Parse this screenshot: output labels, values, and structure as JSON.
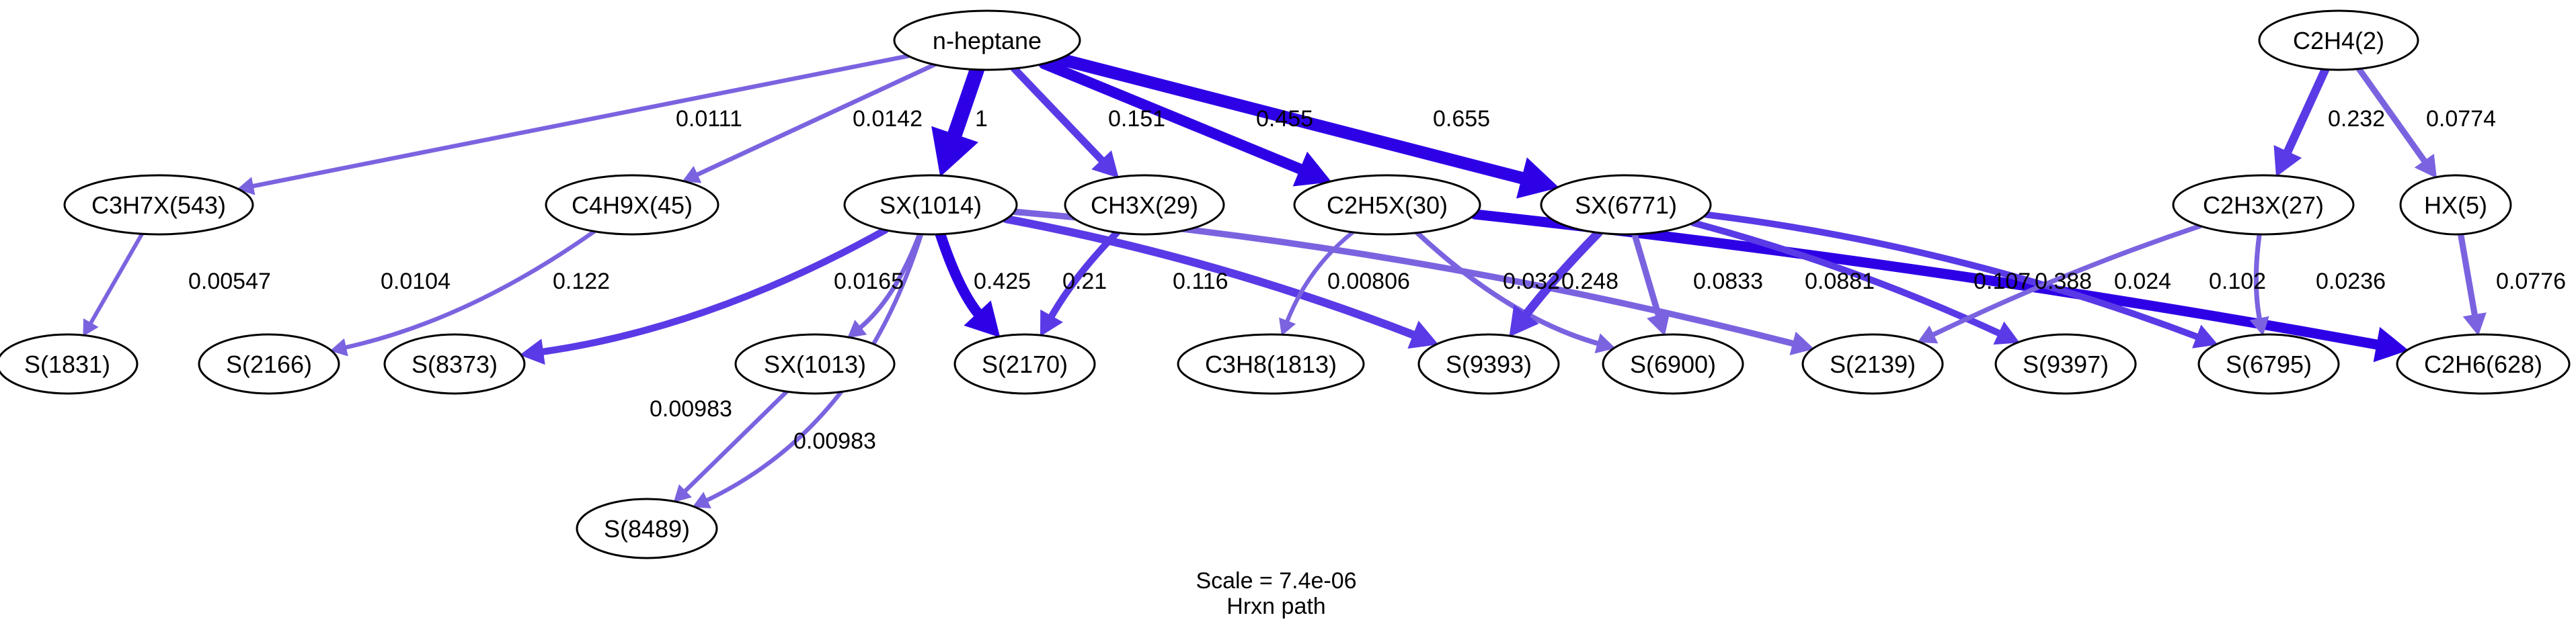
{
  "graph": {
    "colors": {
      "strong": "#2e00e6",
      "medium": "#5a3ae6",
      "light": "#7b63e0",
      "node_stroke": "#000000",
      "text": "#000000"
    },
    "nodes": [
      {
        "id": "n-heptane",
        "label": "n-heptane"
      },
      {
        "id": "C2H4(2)",
        "label": "C2H4(2)"
      },
      {
        "id": "C3H7X(543)",
        "label": "C3H7X(543)"
      },
      {
        "id": "C4H9X(45)",
        "label": "C4H9X(45)"
      },
      {
        "id": "SX(1014)",
        "label": "SX(1014)"
      },
      {
        "id": "CH3X(29)",
        "label": "CH3X(29)"
      },
      {
        "id": "C2H5X(30)",
        "label": "C2H5X(30)"
      },
      {
        "id": "SX(6771)",
        "label": "SX(6771)"
      },
      {
        "id": "C2H3X(27)",
        "label": "C2H3X(27)"
      },
      {
        "id": "HX(5)",
        "label": "HX(5)"
      },
      {
        "id": "S(1831)",
        "label": "S(1831)"
      },
      {
        "id": "S(2166)",
        "label": "S(2166)"
      },
      {
        "id": "S(8373)",
        "label": "S(8373)"
      },
      {
        "id": "SX(1013)",
        "label": "SX(1013)"
      },
      {
        "id": "S(2170)",
        "label": "S(2170)"
      },
      {
        "id": "C3H8(1813)",
        "label": "C3H8(1813)"
      },
      {
        "id": "S(9393)",
        "label": "S(9393)"
      },
      {
        "id": "S(6900)",
        "label": "S(6900)"
      },
      {
        "id": "S(2139)",
        "label": "S(2139)"
      },
      {
        "id": "S(9397)",
        "label": "S(9397)"
      },
      {
        "id": "S(6795)",
        "label": "S(6795)"
      },
      {
        "id": "C2H6(628)",
        "label": "C2H6(628)"
      },
      {
        "id": "S(8489)",
        "label": "S(8489)"
      }
    ],
    "edges": [
      {
        "from": "n-heptane",
        "to": "C3H7X(543)",
        "label": "0.0111",
        "weight": 0.0111
      },
      {
        "from": "n-heptane",
        "to": "C4H9X(45)",
        "label": "0.0142",
        "weight": 0.0142
      },
      {
        "from": "n-heptane",
        "to": "SX(1014)",
        "label": "1",
        "weight": 1
      },
      {
        "from": "n-heptane",
        "to": "CH3X(29)",
        "label": "0.151",
        "weight": 0.151
      },
      {
        "from": "n-heptane",
        "to": "C2H5X(30)",
        "label": "0.455",
        "weight": 0.455
      },
      {
        "from": "n-heptane",
        "to": "SX(6771)",
        "label": "0.655",
        "weight": 0.655
      },
      {
        "from": "C2H4(2)",
        "to": "C2H3X(27)",
        "label": "0.232",
        "weight": 0.232
      },
      {
        "from": "C2H4(2)",
        "to": "HX(5)",
        "label": "0.0774",
        "weight": 0.0774
      },
      {
        "from": "C3H7X(543)",
        "to": "S(1831)",
        "label": "0.00547",
        "weight": 0.00547
      },
      {
        "from": "C4H9X(45)",
        "to": "S(2166)",
        "label": "0.0104",
        "weight": 0.0104
      },
      {
        "from": "SX(1014)",
        "to": "S(8373)",
        "label": "0.122",
        "weight": 0.122
      },
      {
        "from": "SX(1014)",
        "to": "S(8489)",
        "label": "0.00983",
        "weight": 0.00983
      },
      {
        "from": "SX(1014)",
        "to": "SX(1013)",
        "label": "0.0165",
        "weight": 0.0165
      },
      {
        "from": "SX(1014)",
        "to": "S(2170)",
        "label": "0.425",
        "weight": 0.425
      },
      {
        "from": "SX(1014)",
        "to": "S(9393)",
        "label": "0.21",
        "weight": 0.21
      },
      {
        "from": "SX(1014)",
        "to": "S(2139)",
        "label": "0.0881",
        "weight": 0.0881
      },
      {
        "from": "CH3X(29)",
        "to": "S(2170)",
        "label": "0.116",
        "weight": 0.116
      },
      {
        "from": "C2H5X(30)",
        "to": "C3H8(1813)",
        "label": "0.00806",
        "weight": 0.00806
      },
      {
        "from": "C2H5X(30)",
        "to": "S(6900)",
        "label": "0.032",
        "weight": 0.032
      },
      {
        "from": "C2H5X(30)",
        "to": "C2H6(628)",
        "label": "0.388",
        "weight": 0.388
      },
      {
        "from": "SX(6771)",
        "to": "S(9393)",
        "label": "0.248",
        "weight": 0.248
      },
      {
        "from": "SX(6771)",
        "to": "S(6900)",
        "label": "0.0833",
        "weight": 0.0833
      },
      {
        "from": "SX(6771)",
        "to": "S(9397)",
        "label": "0.107",
        "weight": 0.107
      },
      {
        "from": "SX(6771)",
        "to": "S(6795)",
        "label": "0.102",
        "weight": 0.102
      },
      {
        "from": "C2H3X(27)",
        "to": "S(2139)",
        "label": "0.024",
        "weight": 0.024
      },
      {
        "from": "C2H3X(27)",
        "to": "S(6795)",
        "label": "0.0236",
        "weight": 0.0236
      },
      {
        "from": "HX(5)",
        "to": "C2H6(628)",
        "label": "0.0776",
        "weight": 0.0776
      },
      {
        "from": "SX(1013)",
        "to": "S(8489)",
        "label": "0.00983",
        "weight": 0.00983
      }
    ],
    "caption": {
      "scale": "Scale = 7.4e-06",
      "title": "Hrxn path"
    }
  }
}
